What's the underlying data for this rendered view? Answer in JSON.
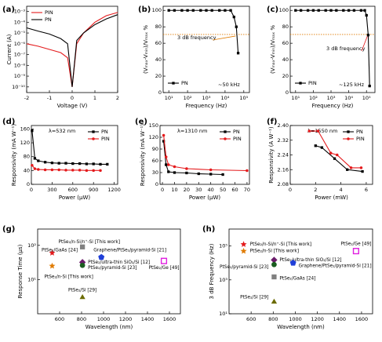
{
  "chart_data": [
    {
      "type": "line",
      "panel": "(a)",
      "xlabel": "Voltage (V)",
      "ylabel": "Current (A)",
      "ylog": true,
      "legend": "upper left",
      "xlim": [
        -2,
        2
      ],
      "xticks": [
        -2,
        -1,
        0,
        1,
        2
      ],
      "ylim": [
        3e-11,
        0.003
      ],
      "yticks": [
        {
          "value": 0.001,
          "label": "10⁻³"
        },
        {
          "value": 0.0001,
          "label": "10⁻⁴"
        },
        {
          "value": 1e-05,
          "label": "10⁻⁵"
        },
        {
          "value": 1e-06,
          "label": "10⁻⁶"
        },
        {
          "value": 1e-07,
          "label": "10⁻⁷"
        },
        {
          "value": 1e-08,
          "label": "10⁻⁸"
        },
        {
          "value": 1e-09,
          "label": "10⁻⁹"
        },
        {
          "value": 1e-10,
          "label": "10⁻¹⁰"
        }
      ],
      "x": [
        -2,
        -1.5,
        -1,
        -0.5,
        -0.2,
        0,
        0.2,
        0.5,
        1,
        1.5,
        2
      ],
      "series": [
        {
          "name": "PIN",
          "color": "#e41a1c",
          "values": [
            1e-06,
            6e-07,
            3e-07,
            1.5e-07,
            5e-08,
            1e-10,
            1e-06,
            1e-05,
            0.0001,
            0.0004,
            0.0008
          ]
        },
        {
          "name": "PN",
          "color": "#000000",
          "values": [
            3e-05,
            1.5e-05,
            8e-06,
            3e-06,
            1e-06,
            1e-10,
            2e-06,
            1e-05,
            6e-05,
            0.0002,
            0.0005
          ]
        }
      ]
    },
    {
      "type": "line",
      "panel": "(b)",
      "xlabel": "Frequency (Hz)",
      "ylabel": "(Vₘₐₓ-Vₘᵢₙ)/Vₘₐₓ %",
      "xlog": true,
      "legend": "lower left",
      "ref_line": 70.7,
      "annotations": [
        {
          "text": "3 dB frequency",
          "color": "#e07b00"
        },
        {
          "text": "~50 kHz",
          "color": "#000000"
        }
      ],
      "xlim": [
        5,
        200000
      ],
      "xticks": [
        {
          "value": 10,
          "label": "10¹"
        },
        {
          "value": 100,
          "label": "10²"
        },
        {
          "value": 1000,
          "label": "10³"
        },
        {
          "value": 10000,
          "label": "10⁴"
        },
        {
          "value": 100000,
          "label": "10⁵"
        }
      ],
      "ylim": [
        0,
        105
      ],
      "yticks": [
        0,
        20,
        40,
        60,
        80,
        100
      ],
      "series": [
        {
          "name": "PN",
          "color": "#000000",
          "marker": "square",
          "x": [
            10,
            20,
            50,
            100,
            200,
            500,
            1000,
            2000,
            5000,
            10000,
            20000,
            30000,
            40000,
            50000
          ],
          "values": [
            100,
            100,
            100,
            100,
            100,
            100,
            100,
            100,
            100,
            100,
            100,
            92,
            80,
            48
          ]
        }
      ]
    },
    {
      "type": "line",
      "panel": "(c)",
      "xlabel": "Frequency (Hz)",
      "ylabel": "(Vₘₐₓ-Vₘᵢₙ)/Vₘₐₓ %",
      "xlog": true,
      "legend": "lower left",
      "ref_line": 70.7,
      "annotations": [
        {
          "text": "3 dB frequency",
          "color": "#e41a1c"
        },
        {
          "text": "~125 kHz",
          "color": "#000000"
        }
      ],
      "xlim": [
        5,
        300000
      ],
      "xticks": [
        {
          "value": 10,
          "label": "10¹"
        },
        {
          "value": 100,
          "label": "10²"
        },
        {
          "value": 1000,
          "label": "10³"
        },
        {
          "value": 10000,
          "label": "10⁴"
        },
        {
          "value": 100000,
          "label": "10⁵"
        }
      ],
      "ylim": [
        0,
        105
      ],
      "yticks": [
        0,
        20,
        40,
        60,
        80,
        100
      ],
      "series": [
        {
          "name": "PIN",
          "color": "#000000",
          "marker": "square",
          "x": [
            10,
            20,
            50,
            100,
            200,
            500,
            1000,
            2000,
            5000,
            10000,
            20000,
            50000,
            80000,
            100000,
            125000,
            150000
          ],
          "values": [
            100,
            100,
            100,
            100,
            100,
            100,
            100,
            100,
            100,
            100,
            100,
            100,
            100,
            94,
            70,
            8
          ]
        }
      ]
    },
    {
      "type": "line",
      "panel": "(d)",
      "xlabel": "Power (μW)",
      "ylabel": "Responsivity (mA W⁻¹)",
      "legend": "upper right",
      "annotations": [
        {
          "text": "λ=532 nm",
          "color": "#000000"
        }
      ],
      "xlim": [
        0,
        1250
      ],
      "xticks": [
        0,
        300,
        600,
        900,
        1200
      ],
      "ylim": [
        0,
        170
      ],
      "yticks": [
        0,
        40,
        80,
        120,
        160
      ],
      "series": [
        {
          "name": "PN",
          "color": "#000000",
          "marker": "square",
          "x": [
            10,
            50,
            100,
            200,
            300,
            400,
            500,
            600,
            700,
            800,
            900,
            1000,
            1100
          ],
          "values": [
            155,
            75,
            68,
            64,
            62,
            61,
            61,
            60,
            60,
            59,
            59,
            58,
            58
          ]
        },
        {
          "name": "PIN",
          "color": "#e41a1c",
          "marker": "circle",
          "x": [
            10,
            50,
            100,
            200,
            300,
            400,
            500,
            600,
            700,
            800,
            900,
            1000
          ],
          "values": [
            55,
            45,
            43,
            42,
            42,
            42,
            41,
            41,
            41,
            40,
            40,
            40
          ]
        }
      ]
    },
    {
      "type": "line",
      "panel": "(e)",
      "xlabel": "Power (μW)",
      "ylabel": "Responsivity (mA W⁻¹)",
      "legend": "upper right",
      "annotations": [
        {
          "text": "λ=1310 nm",
          "color": "#000000"
        }
      ],
      "xlim": [
        -2,
        72
      ],
      "xticks": [
        0,
        10,
        20,
        30,
        40,
        50,
        60,
        70
      ],
      "ylim": [
        0,
        150
      ],
      "yticks": [
        0,
        30,
        60,
        90,
        120,
        150
      ],
      "series": [
        {
          "name": "PN",
          "color": "#000000",
          "marker": "square",
          "x": [
            1,
            3,
            5,
            10,
            20,
            30,
            40,
            50
          ],
          "values": [
            110,
            50,
            32,
            30,
            29,
            27,
            26,
            25
          ]
        },
        {
          "name": "PIN",
          "color": "#e41a1c",
          "marker": "circle",
          "x": [
            1,
            3,
            5,
            10,
            20,
            40,
            70
          ],
          "values": [
            125,
            70,
            50,
            45,
            40,
            37,
            35
          ]
        }
      ]
    },
    {
      "type": "line",
      "panel": "(f)",
      "xlabel": "Power (mW)",
      "ylabel": "Responsivity (A W⁻¹)",
      "legend": "upper right",
      "annotations": [
        {
          "text": "λ=1550 nm",
          "color": "#000000"
        }
      ],
      "xlim": [
        0,
        6.5
      ],
      "xticks": [
        0,
        2,
        4,
        6
      ],
      "ylim": [
        2.08,
        2.4
      ],
      "yticks": [
        2.08,
        2.16,
        2.24,
        2.32,
        {
          "value": 2.4,
          "label": "2.40"
        }
      ],
      "series": [
        {
          "name": "PN",
          "color": "#000000",
          "marker": "square",
          "x": [
            2,
            2.5,
            3.5,
            4.5,
            5.7
          ],
          "values": [
            2.29,
            2.28,
            2.22,
            2.16,
            2.15
          ]
        },
        {
          "name": "PIN",
          "color": "#e41a1c",
          "marker": "circle",
          "x": [
            1.5,
            2.2,
            3.2,
            3.7,
            4.8,
            5.6
          ],
          "values": [
            2.37,
            2.37,
            2.25,
            2.24,
            2.17,
            2.17
          ]
        }
      ]
    },
    {
      "type": "scatter",
      "panel": "(g)",
      "xlabel": "Wavelength (nm)",
      "ylabel": "Response Time (μs)",
      "ylog": true,
      "xlim": [
        400,
        1700
      ],
      "xticks": [
        600,
        800,
        1000,
        1200,
        1400,
        1600
      ],
      "ylim": [
        1,
        300
      ],
      "yticks": [
        {
          "value": 10,
          "label": "10¹"
        },
        {
          "value": 100,
          "label": "10²"
        }
      ],
      "series": [
        {
          "name": "PtSe₂/n-Si/n⁺-Si [This work]",
          "color": "#e41a1c",
          "marker": "star",
          "x": [
            532
          ],
          "values": [
            60
          ]
        },
        {
          "name": "PtSe₂/GaAs [24]",
          "color": "#808080",
          "marker": "square",
          "x": [
            808
          ],
          "values": [
            90
          ]
        },
        {
          "name": "Graphene/PtSe₂/pyramid-Si [21]",
          "color": "#1f3fd8",
          "marker": "pentagon",
          "x": [
            980
          ],
          "values": [
            45
          ]
        },
        {
          "name": "PtSe₂/Ge [49]",
          "color": "#e01ee0",
          "marker": "square-open",
          "x": [
            1550
          ],
          "values": [
            35
          ]
        },
        {
          "name": "PtSe₂/ultra-thin SiO₂/Si [12]",
          "color": "#6a1b6a",
          "marker": "diamond",
          "x": [
            808
          ],
          "values": [
            32
          ]
        },
        {
          "name": "PtSe₂/pyramid-Si [23]",
          "color": "#1b5e20",
          "marker": "circle",
          "x": [
            808
          ],
          "values": [
            26
          ]
        },
        {
          "name": "PtSe₂/n-Si [This work]",
          "color": "#e07b00",
          "marker": "star",
          "x": [
            532
          ],
          "values": [
            25
          ]
        },
        {
          "name": "PtSe₂/Si [29]",
          "color": "#6b6b00",
          "marker": "triangle",
          "x": [
            808
          ],
          "values": [
            3
          ]
        }
      ]
    },
    {
      "type": "scatter",
      "panel": "(h)",
      "xlabel": "Wavelength (nm)",
      "ylabel": "3 dB Frequency (Hz)",
      "ylog": true,
      "xlim": [
        400,
        1700
      ],
      "xticks": [
        600,
        800,
        1000,
        1200,
        1400,
        1600
      ],
      "ylim": [
        10,
        1000000
      ],
      "yticks": [
        {
          "value": 10,
          "label": "10¹"
        },
        {
          "value": 1000,
          "label": "10³"
        },
        {
          "value": 100000,
          "label": "10⁵"
        }
      ],
      "series": [
        {
          "name": "PtSe₂/n-Si/n⁺-Si [This work]",
          "color": "#e41a1c",
          "marker": "star",
          "x": [
            532
          ],
          "values": [
            125000
          ]
        },
        {
          "name": "PtSe₂/n-Si [This work]",
          "color": "#e07b00",
          "marker": "star",
          "x": [
            532
          ],
          "values": [
            50000
          ]
        },
        {
          "name": "PtSe₂/Ge [49]",
          "color": "#e01ee0",
          "marker": "square-open",
          "x": [
            1550
          ],
          "values": [
            50000
          ]
        },
        {
          "name": "PtSe₂/ultra-thin SiO₂/Si [12]",
          "color": "#6a1b6a",
          "marker": "diamond",
          "x": [
            808
          ],
          "values": [
            15000
          ]
        },
        {
          "name": "Graphene/PtSe₂/pyramid-Si [21]",
          "color": "#1f3fd8",
          "marker": "pentagon",
          "x": [
            980
          ],
          "values": [
            10000
          ]
        },
        {
          "name": "PtSe₂/pyramid-Si [23]",
          "color": "#1b5e20",
          "marker": "circle",
          "x": [
            808
          ],
          "values": [
            8000
          ]
        },
        {
          "name": "PtSe₂/GaAs [24]",
          "color": "#808080",
          "marker": "square",
          "x": [
            808
          ],
          "values": [
            1500
          ]
        },
        {
          "name": "PtSe₂/Si [29]",
          "color": "#6b6b00",
          "marker": "triangle",
          "x": [
            808
          ],
          "values": [
            50
          ]
        }
      ]
    }
  ]
}
